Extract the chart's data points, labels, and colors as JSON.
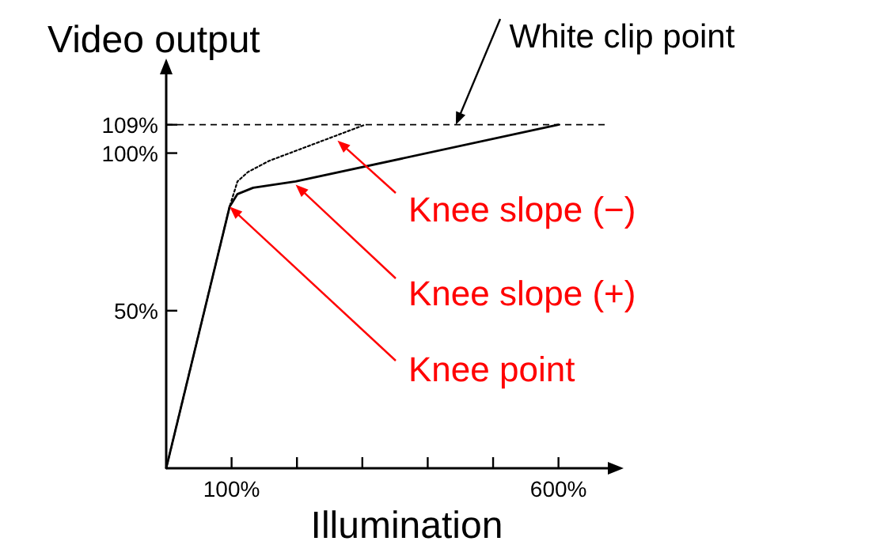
{
  "chart_data": {
    "type": "line",
    "xlabel": "Illumination",
    "ylabel": "Video output",
    "xlim": [
      0,
      690
    ],
    "ylim": [
      0,
      128
    ],
    "xticks": [
      {
        "value": 100,
        "label": "100%"
      },
      {
        "value": 200,
        "label": null
      },
      {
        "value": 300,
        "label": null
      },
      {
        "value": 400,
        "label": null
      },
      {
        "value": 500,
        "label": null
      },
      {
        "value": 600,
        "label": "600%"
      }
    ],
    "yticks": [
      {
        "value": 50,
        "label": "50%"
      },
      {
        "value": 100,
        "label": "100%"
      },
      {
        "value": 109,
        "label": "109%"
      }
    ],
    "series": [
      {
        "color": "#000000",
        "line_style": "solid",
        "x": [
          0,
          97,
          109,
          133,
          198,
          600
        ],
        "values": [
          0,
          83,
          87,
          89,
          91,
          109
        ]
      },
      {
        "color": "#000000",
        "line_style": "dotted",
        "x": [
          0,
          97,
          109,
          125,
          157,
          304
        ],
        "values": [
          0,
          83,
          91,
          94,
          97.5,
          109
        ]
      }
    ],
    "ref_lines": [
      {
        "axis": "y",
        "value": 109,
        "line_style": "dashed",
        "color": "#000000"
      }
    ],
    "annotations": [
      {
        "text": "White clip point",
        "x": 443,
        "y": 109
      },
      {
        "text": "Knee slope (−)",
        "x": 262,
        "y": 104
      },
      {
        "text": "Knee slope (+)",
        "x": 198,
        "y": 90
      },
      {
        "text": "Knee point",
        "x": 97,
        "y": 83
      }
    ],
    "grid": false,
    "marker": "none"
  }
}
